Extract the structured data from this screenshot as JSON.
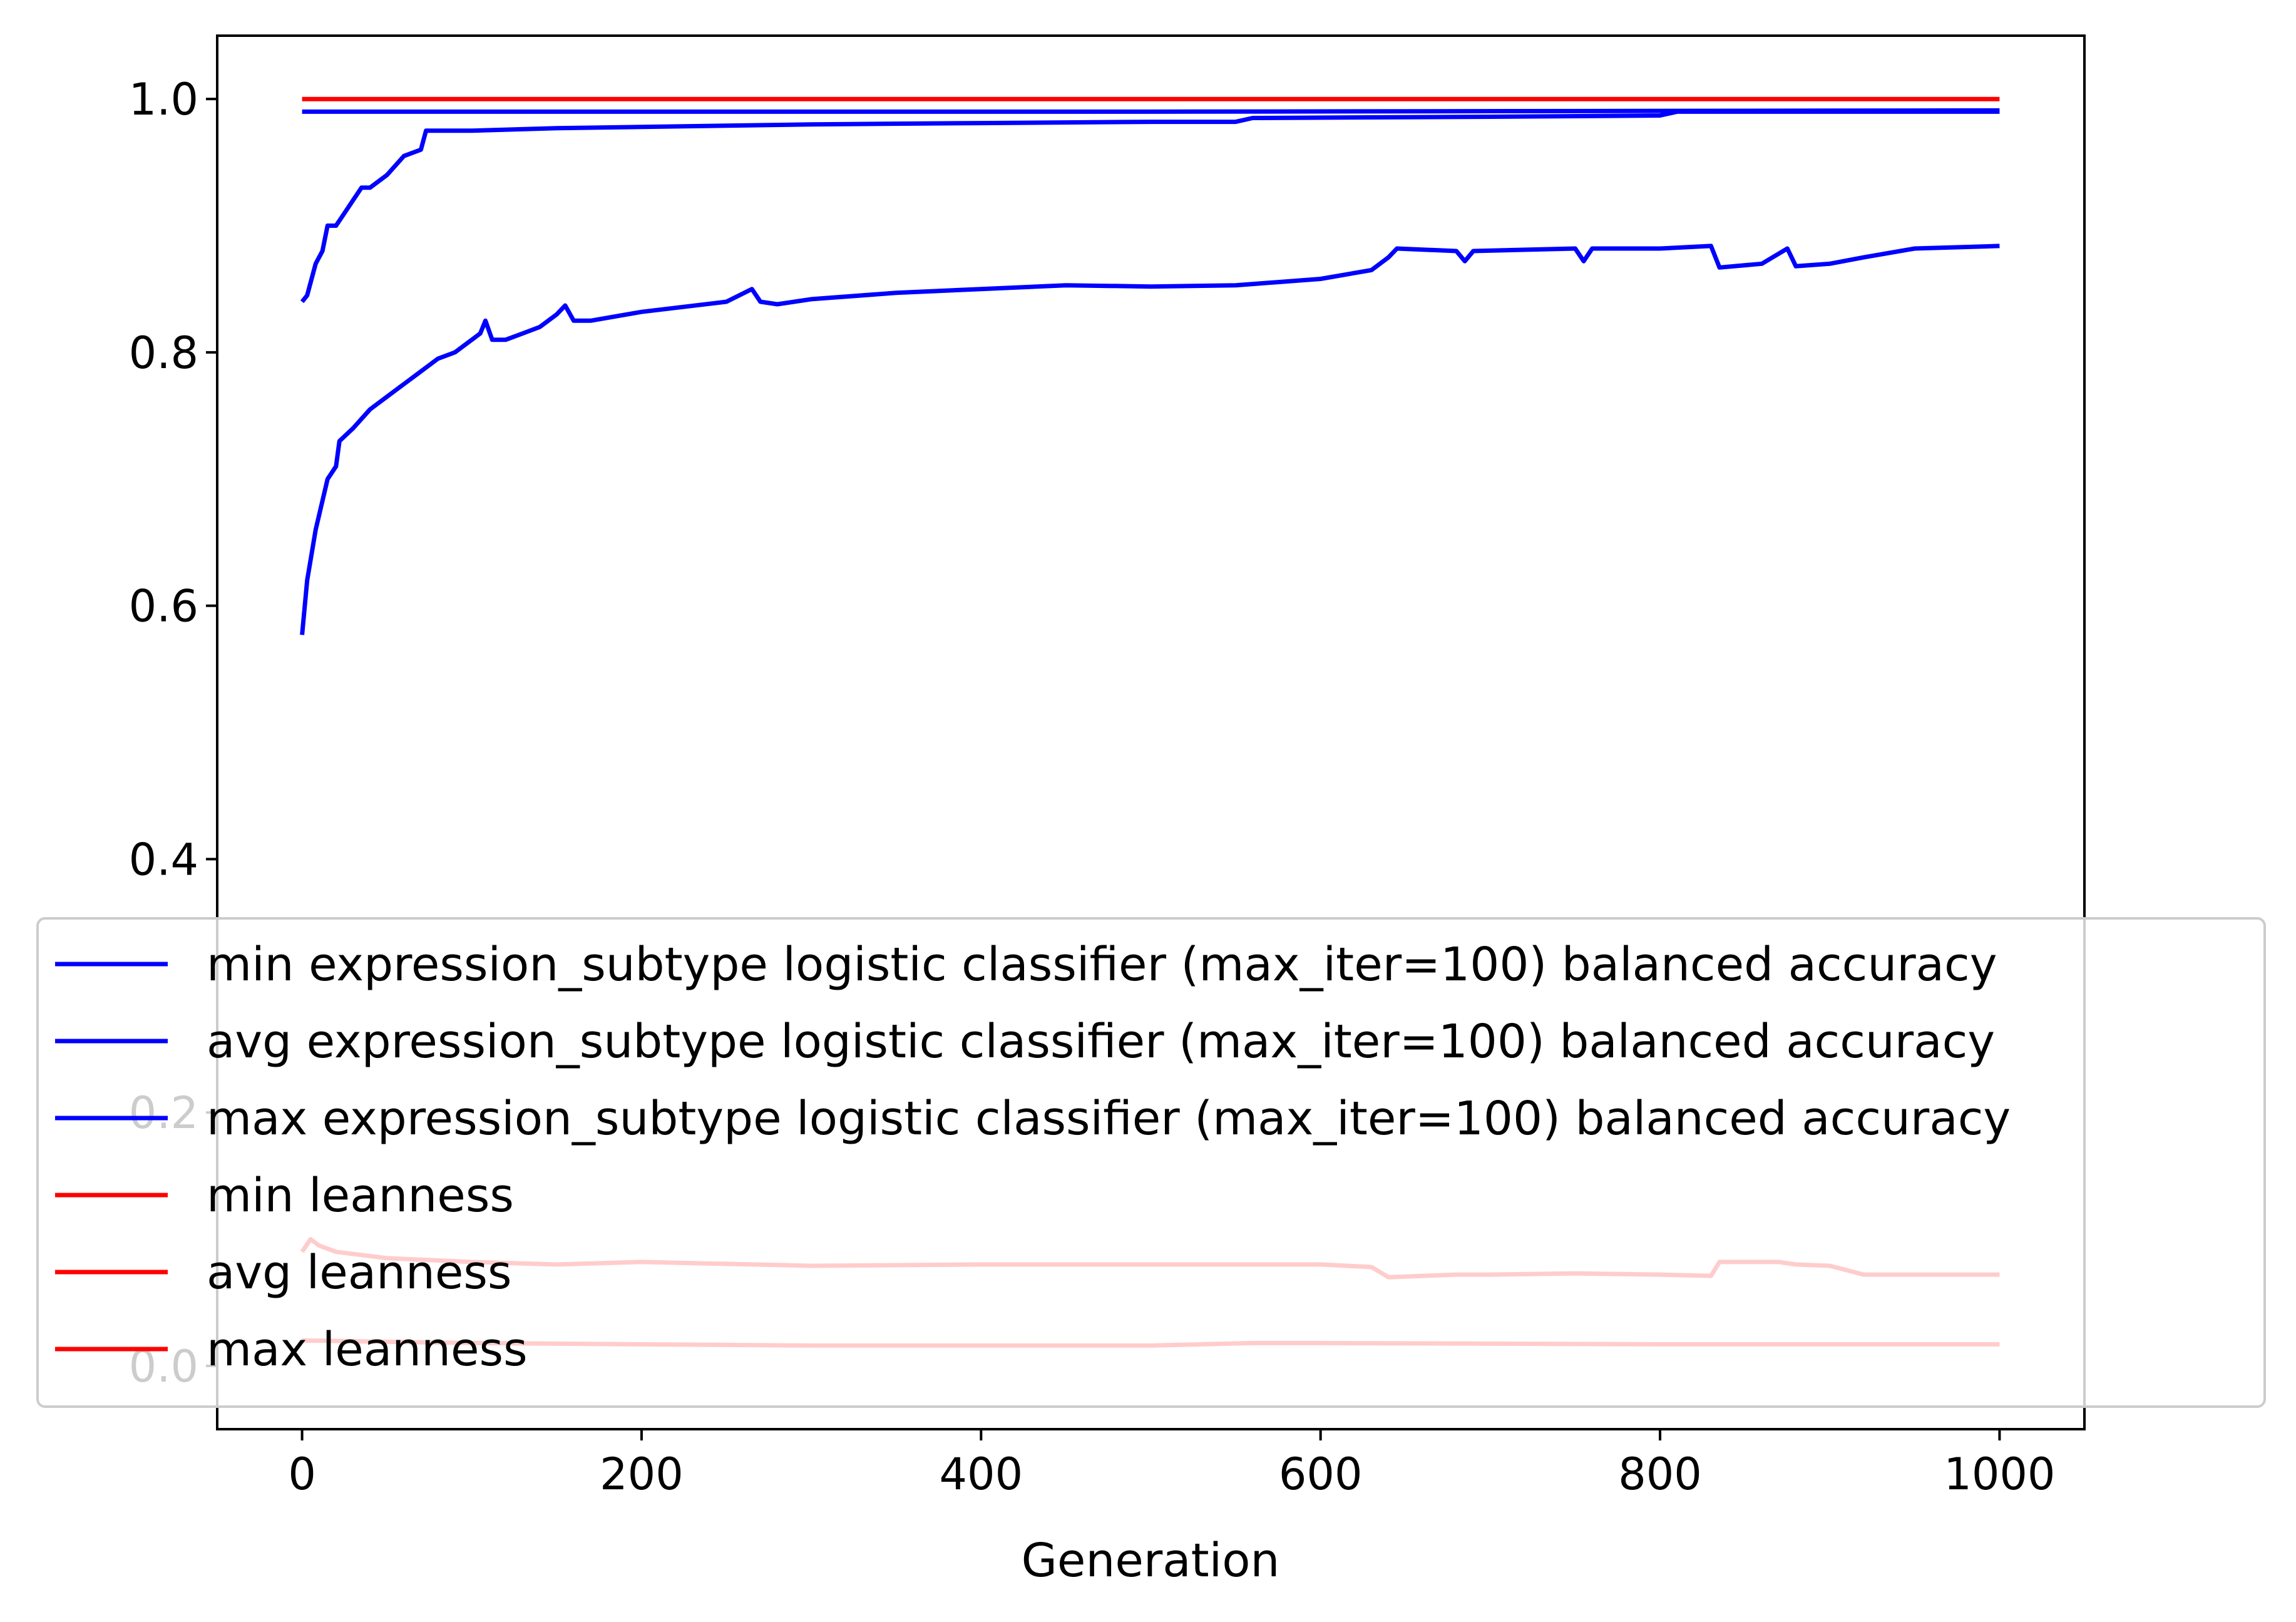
{
  "chart_data": {
    "type": "line",
    "title": "",
    "xlabel": "Generation",
    "ylabel": "",
    "xlim": [
      -50,
      1050
    ],
    "ylim": [
      -0.05,
      1.05
    ],
    "x_ticks": [
      0,
      200,
      400,
      600,
      800,
      1000
    ],
    "y_ticks": [
      0.0,
      0.2,
      0.4,
      0.6,
      0.8,
      1.0
    ],
    "x_tick_labels": [
      "0",
      "200",
      "400",
      "600",
      "800",
      "1000"
    ],
    "y_tick_labels": [
      "0.0",
      "0.2",
      "0.4",
      "0.6",
      "0.8",
      "1.0"
    ],
    "grid": false,
    "legend_position": "lower-left, overlapping plot",
    "legend_alpha": 0.8,
    "series": [
      {
        "name": "min expression_subtype logistic classifier (max_iter=100) balanced accuracy",
        "color": "#0000ff",
        "points": [
          [
            0,
            0.577
          ],
          [
            3,
            0.62
          ],
          [
            8,
            0.66
          ],
          [
            15,
            0.7
          ],
          [
            20,
            0.71
          ],
          [
            22,
            0.73
          ],
          [
            30,
            0.74
          ],
          [
            40,
            0.755
          ],
          [
            50,
            0.765
          ],
          [
            60,
            0.775
          ],
          [
            70,
            0.785
          ],
          [
            80,
            0.795
          ],
          [
            90,
            0.8
          ],
          [
            100,
            0.81
          ],
          [
            105,
            0.815
          ],
          [
            108,
            0.825
          ],
          [
            112,
            0.81
          ],
          [
            120,
            0.81
          ],
          [
            130,
            0.815
          ],
          [
            140,
            0.82
          ],
          [
            150,
            0.83
          ],
          [
            155,
            0.837
          ],
          [
            160,
            0.825
          ],
          [
            170,
            0.825
          ],
          [
            200,
            0.832
          ],
          [
            250,
            0.84
          ],
          [
            265,
            0.85
          ],
          [
            270,
            0.84
          ],
          [
            280,
            0.838
          ],
          [
            300,
            0.842
          ],
          [
            350,
            0.847
          ],
          [
            400,
            0.85
          ],
          [
            450,
            0.853
          ],
          [
            500,
            0.852
          ],
          [
            550,
            0.853
          ],
          [
            600,
            0.858
          ],
          [
            630,
            0.865
          ],
          [
            640,
            0.875
          ],
          [
            645,
            0.882
          ],
          [
            680,
            0.88
          ],
          [
            685,
            0.872
          ],
          [
            690,
            0.88
          ],
          [
            750,
            0.882
          ],
          [
            755,
            0.872
          ],
          [
            760,
            0.882
          ],
          [
            800,
            0.882
          ],
          [
            830,
            0.884
          ],
          [
            835,
            0.867
          ],
          [
            860,
            0.87
          ],
          [
            875,
            0.882
          ],
          [
            880,
            0.868
          ],
          [
            900,
            0.87
          ],
          [
            920,
            0.875
          ],
          [
            950,
            0.882
          ],
          [
            1000,
            0.884
          ]
        ]
      },
      {
        "name": "avg expression_subtype logistic classifier (max_iter=100) balanced accuracy",
        "color": "#0000ff",
        "points": [
          [
            0,
            0.84
          ],
          [
            3,
            0.845
          ],
          [
            8,
            0.87
          ],
          [
            12,
            0.88
          ],
          [
            15,
            0.9
          ],
          [
            20,
            0.9
          ],
          [
            25,
            0.91
          ],
          [
            30,
            0.92
          ],
          [
            35,
            0.93
          ],
          [
            40,
            0.93
          ],
          [
            50,
            0.94
          ],
          [
            60,
            0.955
          ],
          [
            70,
            0.96
          ],
          [
            73,
            0.975
          ],
          [
            100,
            0.975
          ],
          [
            150,
            0.977
          ],
          [
            200,
            0.978
          ],
          [
            300,
            0.98
          ],
          [
            400,
            0.981
          ],
          [
            500,
            0.982
          ],
          [
            550,
            0.982
          ],
          [
            560,
            0.985
          ],
          [
            700,
            0.986
          ],
          [
            800,
            0.987
          ],
          [
            810,
            0.99
          ],
          [
            1000,
            0.99
          ]
        ]
      },
      {
        "name": "max expression_subtype logistic classifier (max_iter=100) balanced accuracy",
        "color": "#0000ff",
        "points": [
          [
            0,
            0.99
          ],
          [
            500,
            0.99
          ],
          [
            1000,
            0.991
          ]
        ]
      },
      {
        "name": "min leanness",
        "color": "#ff0000",
        "points": [
          [
            0,
            1.0
          ],
          [
            1000,
            1.0
          ]
        ]
      },
      {
        "name": "avg leanness",
        "color": "#ff0000",
        "points": [
          [
            0,
            0.09
          ],
          [
            5,
            0.1
          ],
          [
            10,
            0.095
          ],
          [
            20,
            0.09
          ],
          [
            50,
            0.085
          ],
          [
            100,
            0.082
          ],
          [
            150,
            0.08
          ],
          [
            200,
            0.082
          ],
          [
            300,
            0.079
          ],
          [
            400,
            0.08
          ],
          [
            500,
            0.08
          ],
          [
            600,
            0.08
          ],
          [
            630,
            0.078
          ],
          [
            640,
            0.07
          ],
          [
            680,
            0.072
          ],
          [
            700,
            0.072
          ],
          [
            750,
            0.073
          ],
          [
            800,
            0.072
          ],
          [
            830,
            0.071
          ],
          [
            835,
            0.082
          ],
          [
            870,
            0.082
          ],
          [
            880,
            0.08
          ],
          [
            900,
            0.079
          ],
          [
            920,
            0.072
          ],
          [
            950,
            0.072
          ],
          [
            1000,
            0.072
          ]
        ]
      },
      {
        "name": "max leanness",
        "color": "#ff0000",
        "points": [
          [
            0,
            0.02
          ],
          [
            100,
            0.018
          ],
          [
            300,
            0.016
          ],
          [
            500,
            0.016
          ],
          [
            560,
            0.018
          ],
          [
            600,
            0.018
          ],
          [
            800,
            0.017
          ],
          [
            1000,
            0.017
          ]
        ]
      }
    ]
  }
}
